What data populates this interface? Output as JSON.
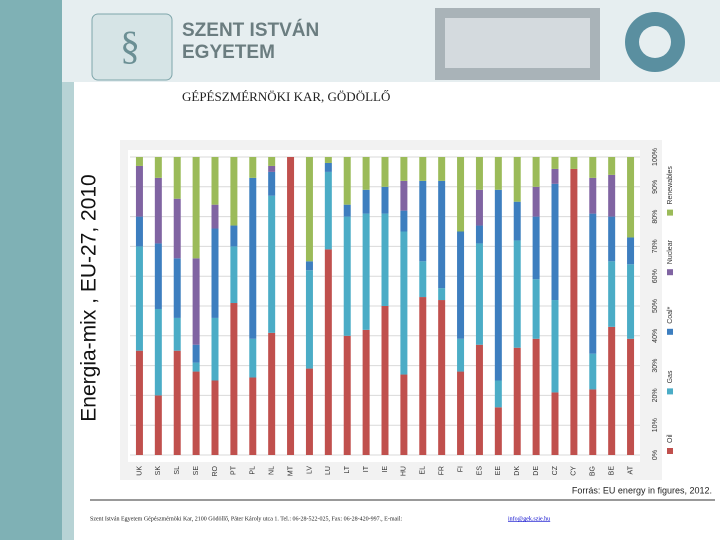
{
  "header": {
    "university_line1": "SZENT ISTVÁN",
    "university_line2": "EGYETEM",
    "faculty": "GÉPÉSZMÉRNÖKI KAR, GÖDÖLLŐ"
  },
  "slide_title": "Energia-mix , EU-27, 2010",
  "chart_data": {
    "type": "bar",
    "stacked": true,
    "legend": "right",
    "categories": [
      "UK",
      "SK",
      "SL",
      "SE",
      "RO",
      "PT",
      "PL",
      "NL",
      "MT",
      "LV",
      "LU",
      "LT",
      "IT",
      "IE",
      "HU",
      "EL",
      "FR",
      "FI",
      "ES",
      "EE",
      "DK",
      "DE",
      "CZ",
      "CY",
      "BG",
      "BE",
      "AT"
    ],
    "series": [
      {
        "name": "Oil",
        "color": "#c0504d",
        "values": [
          35,
          20,
          35,
          28,
          25,
          51,
          26,
          41,
          100,
          29,
          69,
          40,
          42,
          50,
          27,
          53,
          52,
          28,
          37,
          16,
          36,
          39,
          21,
          96,
          22,
          43,
          39
        ]
      },
      {
        "name": "Gas",
        "color": "#4bacc6",
        "values": [
          35,
          29,
          11,
          3,
          21,
          19,
          13,
          46,
          0,
          33,
          26,
          40,
          39,
          31,
          48,
          12,
          4,
          11,
          34,
          9,
          36,
          20,
          31,
          0,
          12,
          22,
          25
        ]
      },
      {
        "name": "Coal*",
        "color": "#3d7ebf",
        "values": [
          10,
          22,
          20,
          6,
          30,
          7,
          54,
          8,
          0,
          3,
          3,
          4,
          8,
          9,
          7,
          27,
          36,
          36,
          6,
          64,
          13,
          21,
          39,
          0,
          47,
          15,
          9
        ]
      },
      {
        "name": "Nuclear",
        "color": "#8064a2",
        "values": [
          17,
          22,
          20,
          29,
          8,
          0,
          0,
          2,
          0,
          0,
          0,
          0,
          0,
          0,
          10,
          0,
          0,
          0,
          12,
          0,
          0,
          10,
          5,
          0,
          12,
          14,
          0
        ]
      },
      {
        "name": "Renewables",
        "color": "#9bbb59",
        "values": [
          3,
          7,
          14,
          34,
          16,
          23,
          7,
          3,
          0,
          35,
          2,
          16,
          11,
          10,
          8,
          8,
          8,
          25,
          11,
          11,
          15,
          10,
          4,
          4,
          7,
          6,
          27
        ]
      }
    ],
    "ylim": [
      0,
      100
    ],
    "yticks": [
      {
        "value": 0,
        "label": "0%"
      },
      {
        "value": 10,
        "label": "10%"
      },
      {
        "value": 20,
        "label": "20%"
      },
      {
        "value": 30,
        "label": "30%"
      },
      {
        "value": 40,
        "label": "40%"
      },
      {
        "value": 50,
        "label": "50%"
      },
      {
        "value": 60,
        "label": "60%"
      },
      {
        "value": 70,
        "label": "70%"
      },
      {
        "value": 80,
        "label": "80%"
      },
      {
        "value": 90,
        "label": "90%"
      },
      {
        "value": 100,
        "label": "100%"
      }
    ],
    "grid": true
  },
  "source": "Forrás: EU energy in figures, 2012.",
  "footer": {
    "address": "Szent István Egyetem Gépészmérnöki Kar, 2100 Gödöllő, Páter Károly utca 1. Tel.: 06-28-522-025, Fax: 06-28-420-997., E-mail:",
    "email": "info@gek.szie.hu"
  }
}
